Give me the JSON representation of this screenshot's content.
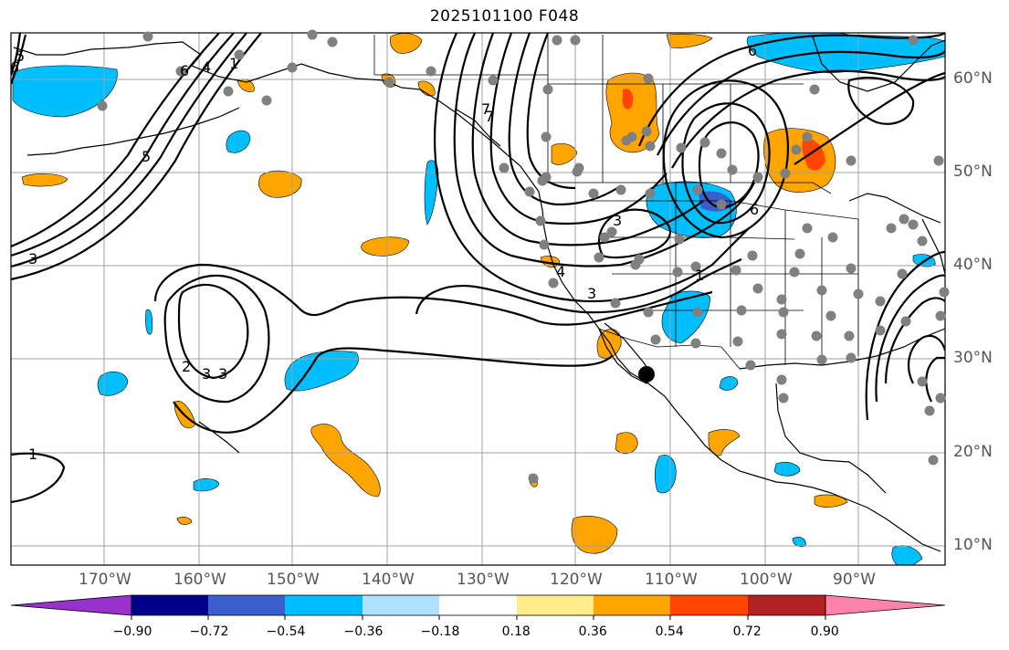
{
  "title": "2025101100 F048",
  "longitude_labels": [
    "170°W",
    "160°W",
    "150°W",
    "140°W",
    "130°W",
    "120°W",
    "110°W",
    "100°W",
    "90°W"
  ],
  "latitude_labels": [
    "60°N",
    "50°N",
    "40°N",
    "30°N",
    "20°N",
    "10°N"
  ],
  "contour_labels": [
    "5",
    "6",
    "4",
    "7",
    "1",
    "3",
    "6",
    "5",
    "7",
    "3",
    "4",
    "3",
    "1",
    "3",
    "6",
    "2",
    "3",
    "1",
    "6"
  ],
  "colorbar": {
    "colors": [
      "#9932cc",
      "#00008b",
      "#3a5fcd",
      "#00bfff",
      "#b0e2ff",
      "#ffffff",
      "#ffec8b",
      "#ffa500",
      "#ff4500",
      "#b22222",
      "#ff82ab"
    ],
    "tick_labels": [
      "−0.90",
      "−0.72",
      "−0.54",
      "−0.36",
      "−0.18",
      "0.18",
      "0.36",
      "0.54",
      "0.72",
      "0.90"
    ]
  },
  "marker": "station-marker",
  "colors": {
    "grid": "#a0a0a0",
    "station": "#808080",
    "contour": "#000000"
  }
}
